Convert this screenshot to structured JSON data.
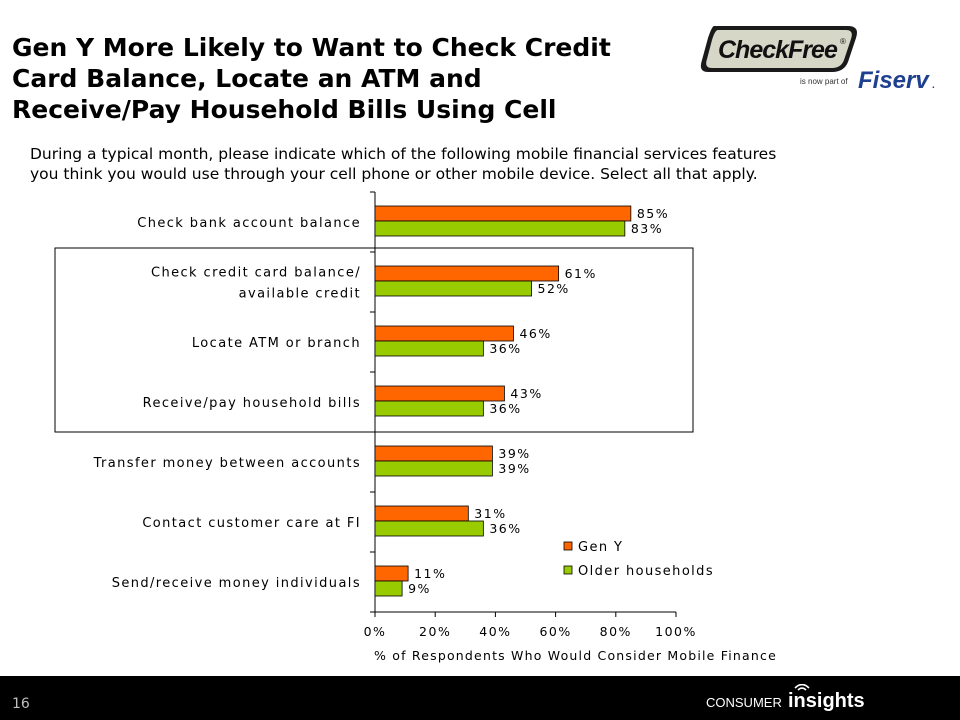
{
  "slide": {
    "title_lines": [
      "Gen Y More Likely to Want to Check Credit",
      "Card Balance, Locate an ATM and",
      "Receive/Pay Household Bills Using Cell"
    ],
    "subtitle_lines": [
      "During a typical month, please indicate which of the following mobile financial services features",
      "you think you would use through your cell phone or other mobile device.  Select all that apply."
    ],
    "page_number": "16"
  },
  "logos": {
    "checkfree": "CheckFree",
    "registered": "®",
    "is_now_part_of": "is now part of",
    "fiserv": "Fiserv",
    "footer_brand_a": "CONSUMER",
    "footer_brand_b": "insights"
  },
  "colors": {
    "gen_y": "#ff6600",
    "older": "#99cc00",
    "footer": "#000000",
    "checkfree_badge": "#1a1a1a",
    "fiserv_blue": "#1f3f8f"
  },
  "chart_data": {
    "type": "bar",
    "orientation": "horizontal",
    "title": "",
    "xlabel": "% of Respondents Who Would Consider Mobile Finance",
    "ylabel": "",
    "xlim": [
      0,
      100
    ],
    "xticks": [
      "0%",
      "20%",
      "40%",
      "60%",
      "80%",
      "100%"
    ],
    "grid": false,
    "legend_position": "bottom-right",
    "categories": [
      [
        "Check bank account balance"
      ],
      [
        "Check credit card balance/",
        "available credit"
      ],
      [
        "Locate ATM or branch"
      ],
      [
        "Receive/pay household bills"
      ],
      [
        "Transfer money between accounts"
      ],
      [
        "Contact customer care at FI"
      ],
      [
        "Send/receive money individuals"
      ]
    ],
    "series": [
      {
        "name": "Gen Y",
        "color": "#ff6600",
        "values": [
          85,
          61,
          46,
          43,
          39,
          31,
          11
        ],
        "labels": [
          "85%",
          "61%",
          "46%",
          "43%",
          "39%",
          "31%",
          "11%"
        ]
      },
      {
        "name": "Older households",
        "color": "#99cc00",
        "values": [
          83,
          52,
          36,
          36,
          39,
          36,
          9
        ],
        "labels": [
          "83%",
          "52%",
          "36%",
          "36%",
          "39%",
          "36%",
          "9%"
        ]
      }
    ],
    "highlight_box": {
      "categories": [
        "Check credit card balance/ available credit",
        "Locate ATM or branch",
        "Receive/pay household bills"
      ]
    }
  }
}
